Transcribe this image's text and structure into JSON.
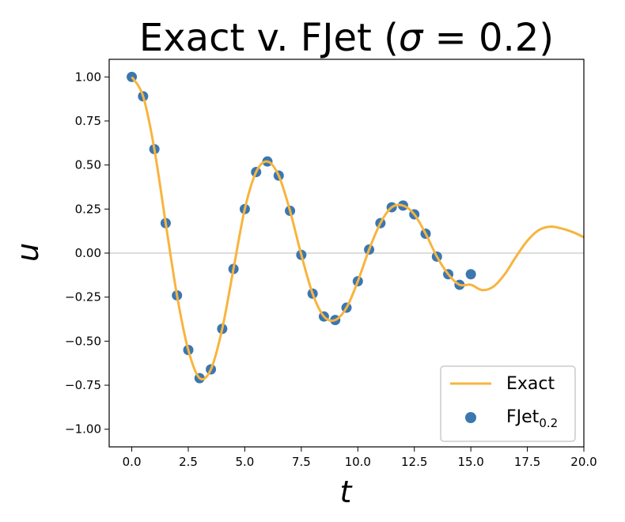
{
  "chart_data": {
    "type": "line",
    "title": "Exact v. FJet (σ = 0.2)",
    "title_parts": {
      "main": "Exact v. FJet (",
      "sigma": "σ",
      "eq": " = 0.2)"
    },
    "xlabel": "t",
    "ylabel": "u",
    "xlim": [
      -1.0,
      20.0
    ],
    "ylim": [
      -1.1,
      1.1
    ],
    "xticks": [
      "0.0",
      "2.5",
      "5.0",
      "7.5",
      "10.0",
      "12.5",
      "15.0",
      "17.5",
      "20.0"
    ],
    "xtick_values": [
      0,
      2.5,
      5,
      7.5,
      10,
      12.5,
      15,
      17.5,
      20
    ],
    "yticks": [
      "1.00",
      "0.75",
      "0.50",
      "0.25",
      "0.00",
      "−0.25",
      "−0.50",
      "−0.75",
      "−1.00"
    ],
    "ytick_values": [
      1,
      0.75,
      0.5,
      0.25,
      0,
      -0.25,
      -0.5,
      -0.75,
      -1
    ],
    "grid": false,
    "zero_line": true,
    "legend": {
      "position": "lower-right",
      "entries": [
        {
          "label": "Exact",
          "marker": "line",
          "color": "#f8b43e"
        },
        {
          "label": "FJet",
          "subscript": "0.2",
          "marker": "circle",
          "color": "#3b77b0"
        }
      ]
    },
    "series": [
      {
        "name": "Exact",
        "style": "line",
        "color": "#f8b43e",
        "x": [
          0.0,
          0.5,
          1.0,
          1.5,
          2.0,
          2.5,
          3.0,
          3.5,
          4.0,
          4.5,
          5.0,
          5.5,
          6.0,
          6.5,
          7.0,
          7.5,
          8.0,
          8.5,
          9.0,
          9.5,
          10.0,
          10.5,
          11.0,
          11.5,
          12.0,
          12.5,
          13.0,
          13.5,
          14.0,
          14.5,
          15.0,
          15.5,
          16.0,
          16.5,
          17.0,
          17.5,
          18.0,
          18.5,
          19.0,
          19.5,
          20.0
        ],
        "y": [
          1.0,
          0.89,
          0.59,
          0.17,
          -0.24,
          -0.55,
          -0.71,
          -0.66,
          -0.43,
          -0.09,
          0.25,
          0.46,
          0.52,
          0.44,
          0.24,
          -0.01,
          -0.23,
          -0.36,
          -0.38,
          -0.31,
          -0.16,
          0.02,
          0.17,
          0.26,
          0.27,
          0.22,
          0.11,
          -0.02,
          -0.12,
          -0.18,
          -0.18,
          -0.21,
          -0.19,
          -0.12,
          -0.02,
          0.07,
          0.13,
          0.15,
          0.14,
          0.12,
          0.09
        ]
      },
      {
        "name": "FJet",
        "subscript": "0.2",
        "style": "scatter",
        "color": "#3b77b0",
        "x": [
          0.0,
          0.5,
          1.0,
          1.5,
          2.0,
          2.5,
          3.0,
          3.5,
          4.0,
          4.5,
          5.0,
          5.5,
          6.0,
          6.5,
          7.0,
          7.5,
          8.0,
          8.5,
          9.0,
          9.5,
          10.0,
          10.5,
          11.0,
          11.5,
          12.0,
          12.5,
          13.0,
          13.5,
          14.0,
          14.5,
          15.0
        ],
        "y": [
          1.0,
          0.89,
          0.59,
          0.17,
          -0.24,
          -0.55,
          -0.71,
          -0.66,
          -0.43,
          -0.09,
          0.25,
          0.46,
          0.52,
          0.44,
          0.24,
          -0.01,
          -0.23,
          -0.36,
          -0.38,
          -0.31,
          -0.16,
          0.02,
          0.17,
          0.26,
          0.27,
          0.22,
          0.11,
          -0.02,
          -0.12,
          -0.18,
          -0.12
        ]
      }
    ]
  }
}
